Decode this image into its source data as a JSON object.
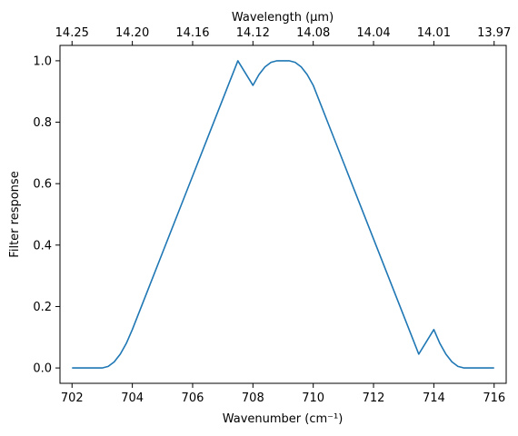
{
  "chart_data": {
    "type": "line",
    "xlabel": "Wavenumber (cm⁻¹)",
    "ylabel": "Filter response",
    "top_xlabel": "Wavelength (μm)",
    "xlim": [
      701.6,
      716.4
    ],
    "ylim": [
      -0.05,
      1.05
    ],
    "xticks": [
      702,
      704,
      706,
      708,
      710,
      712,
      714,
      716
    ],
    "xtick_labels": [
      "702",
      "704",
      "706",
      "708",
      "710",
      "712",
      "714",
      "716"
    ],
    "yticks": [
      0.0,
      0.2,
      0.4,
      0.6,
      0.8,
      1.0
    ],
    "ytick_labels": [
      "0.0",
      "0.2",
      "0.4",
      "0.6",
      "0.8",
      "1.0"
    ],
    "top_xticks": [
      702,
      704,
      706,
      708,
      710,
      712,
      714,
      716
    ],
    "top_xtick_labels": [
      "14.25",
      "14.20",
      "14.16",
      "14.12",
      "14.08",
      "14.04",
      "14.01",
      "13.97"
    ],
    "grid": false,
    "color": "#1f77b4",
    "series": [
      {
        "x": [
          702.0,
          703.0,
          703.2,
          703.4,
          703.6,
          703.8,
          704.0,
          704.5,
          705.0,
          705.5,
          706.0,
          706.5,
          707.0,
          707.5,
          708.0,
          708.2,
          708.4,
          708.6,
          708.8,
          709.0,
          709.2,
          709.4,
          709.6,
          709.8,
          710.0,
          710.5,
          711.0,
          711.5,
          712.0,
          712.5,
          713.0,
          713.5,
          714.0,
          714.2,
          714.4,
          714.6,
          714.8,
          715.0,
          716.0
        ],
        "y": [
          0.0,
          0.0,
          0.005,
          0.02,
          0.045,
          0.08,
          0.125,
          0.25,
          0.375,
          0.5,
          0.625,
          0.75,
          0.875,
          1.0,
          0.92,
          0.955,
          0.98,
          0.995,
          1.0,
          1.0,
          1.0,
          0.995,
          0.98,
          0.955,
          0.92,
          0.795,
          0.67,
          0.545,
          0.42,
          0.295,
          0.17,
          0.045,
          0.125,
          0.08,
          0.045,
          0.02,
          0.005,
          0.0,
          0.0
        ]
      }
    ]
  }
}
